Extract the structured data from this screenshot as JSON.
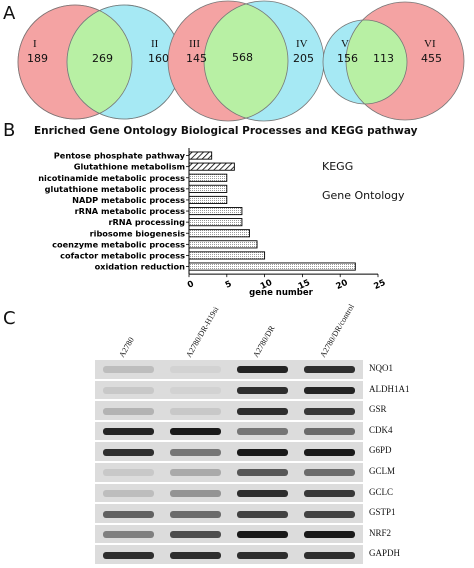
{
  "panels": {
    "a": "A",
    "b": "B",
    "c": "C"
  },
  "venn": [
    {
      "left_label": "I",
      "left_count": "189",
      "overlap": "269",
      "right_label": "II",
      "right_count": "160",
      "left_color": "#f4a3a3",
      "right_color": "#a6e9f4",
      "overlap_color": "#b8f0a4"
    },
    {
      "left_label": "III",
      "left_count": "145",
      "overlap": "568",
      "right_label": "IV",
      "right_count": "205",
      "left_color": "#f4a3a3",
      "right_color": "#a6e9f4",
      "overlap_color": "#b8f0a4"
    },
    {
      "left_label": "V",
      "left_count": "156",
      "overlap": "113",
      "right_label": "VI",
      "right_count": "455",
      "left_color": "#a6e9f4",
      "right_color": "#f4a3a3",
      "overlap_color": "#b8f0a4"
    }
  ],
  "chart_data": {
    "type": "bar",
    "orientation": "horizontal",
    "title": "Enriched Gene Ontology Biological Processes and KEGG pathway",
    "xlabel": "gene number",
    "xlim": [
      0,
      25
    ],
    "xticks": [
      "0",
      "5",
      "10",
      "15",
      "20",
      "25"
    ],
    "categories": [
      "Pentose phosphate pathway",
      "Glutathione metabolism",
      "nicotinamide metabolic process",
      "glutathione metabolic process",
      "NADP metabolic process",
      "rRNA metabolic process",
      "rRNA processing",
      "ribosome biogenesis",
      "coenzyme metabolic process",
      "cofactor metabolic process",
      "oxidation reduction"
    ],
    "values": [
      3,
      6,
      5,
      5,
      5,
      7,
      7,
      8,
      9,
      10,
      22
    ],
    "groups": [
      "KEGG",
      "KEGG",
      "Gene Ontology",
      "Gene Ontology",
      "Gene Ontology",
      "Gene Ontology",
      "Gene Ontology",
      "Gene Ontology",
      "Gene Ontology",
      "Gene Ontology",
      "Gene Ontology"
    ],
    "legend": [
      "KEGG",
      "Gene Ontology"
    ],
    "legend_position": "right"
  },
  "blot": {
    "lanes": [
      "A2780",
      "A2780/DR-H19si",
      "A2780/DR",
      "A2780/DR/control"
    ],
    "rows": [
      {
        "label": "NQO1",
        "levels": [
          0.15,
          0.05,
          0.9,
          0.85
        ]
      },
      {
        "label": "ALDH1A1",
        "levels": [
          0.1,
          0.05,
          0.85,
          0.9
        ]
      },
      {
        "label": "GSR",
        "levels": [
          0.2,
          0.1,
          0.85,
          0.8
        ]
      },
      {
        "label": "CDK4",
        "levels": [
          0.9,
          0.95,
          0.5,
          0.55
        ]
      },
      {
        "label": "G6PD",
        "levels": [
          0.85,
          0.5,
          0.95,
          0.95
        ]
      },
      {
        "label": "GCLM",
        "levels": [
          0.1,
          0.25,
          0.65,
          0.55
        ]
      },
      {
        "label": "GCLC",
        "levels": [
          0.15,
          0.35,
          0.85,
          0.8
        ]
      },
      {
        "label": "GSTP1",
        "levels": [
          0.6,
          0.55,
          0.75,
          0.75
        ]
      },
      {
        "label": "NRF2",
        "levels": [
          0.45,
          0.7,
          0.95,
          0.95
        ]
      },
      {
        "label": "GAPDH",
        "levels": [
          0.85,
          0.85,
          0.85,
          0.85
        ]
      }
    ]
  }
}
